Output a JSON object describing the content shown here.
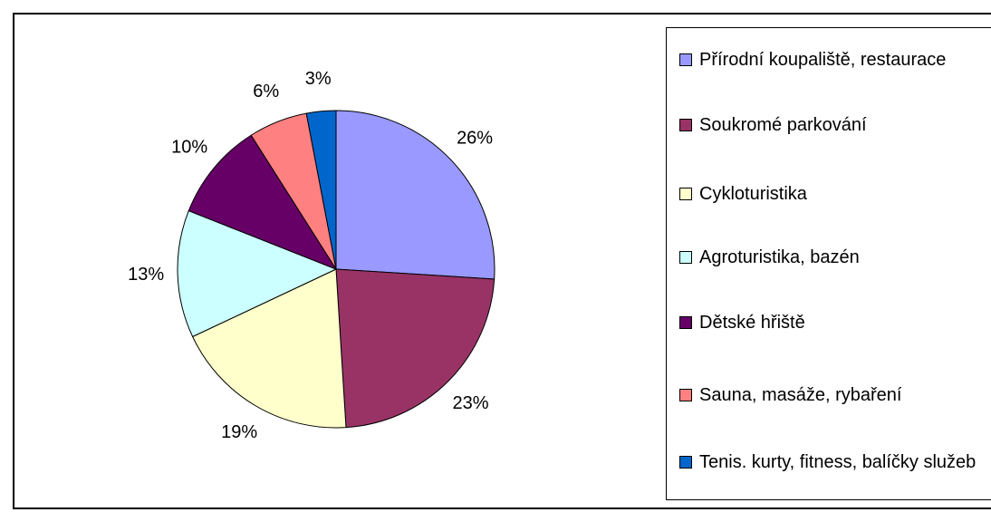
{
  "chart_data": {
    "type": "pie",
    "categories": [
      "Přírodní koupaliště, restaurace",
      "Soukromé parkování",
      "Cykloturistika",
      "Agroturistika, bazén",
      "Dětské hřiště",
      "Sauna, masáže, rybaření",
      "Tenis. kurty, fitness, balíčky služeb"
    ],
    "values": [
      26,
      23,
      19,
      13,
      10,
      6,
      3
    ],
    "value_labels": [
      "26%",
      "23%",
      "19%",
      "13%",
      "10%",
      "6%",
      "3%"
    ],
    "colors": [
      "#9999ff",
      "#993366",
      "#ffffcc",
      "#ccffff",
      "#660066",
      "#ff8080",
      "#0066cc"
    ],
    "legend": "right"
  }
}
